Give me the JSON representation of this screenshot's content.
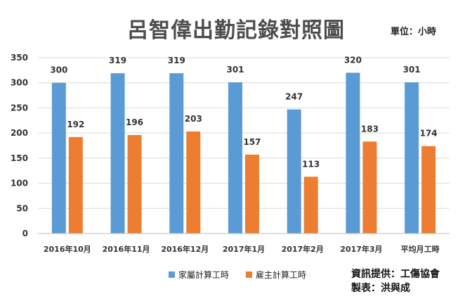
{
  "chart_data": {
    "type": "bar",
    "title": "呂智偉出勤記錄對照圖",
    "unit_note": "單位：小時",
    "categories": [
      "2016年10月",
      "2016年11月",
      "2016年12月",
      "2017年1月",
      "2017年2月",
      "2017年3月",
      "平均月工時"
    ],
    "series": [
      {
        "name": "家屬計算工時",
        "color": "#5b9bd5",
        "values": [
          300,
          319,
          319,
          301,
          247,
          320,
          301
        ]
      },
      {
        "name": "雇主計算工時",
        "color": "#ed7d31",
        "values": [
          192,
          196,
          203,
          157,
          113,
          183,
          174
        ]
      }
    ],
    "ylim": [
      0,
      350
    ],
    "yticks": [
      0,
      50,
      100,
      150,
      200,
      250,
      300,
      350
    ],
    "grid": true,
    "legend": "bottom"
  },
  "credits": {
    "line1": "資訊提供：工傷協會",
    "line2": "製表：洪與成"
  }
}
